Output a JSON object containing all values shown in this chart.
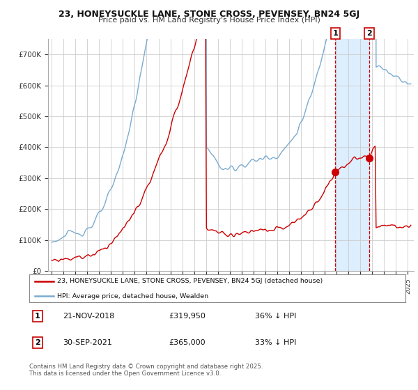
{
  "title1": "23, HONEYSUCKLE LANE, STONE CROSS, PEVENSEY, BN24 5GJ",
  "title2": "Price paid vs. HM Land Registry's House Price Index (HPI)",
  "legend_line1": "23, HONEYSUCKLE LANE, STONE CROSS, PEVENSEY, BN24 5GJ (detached house)",
  "legend_line2": "HPI: Average price, detached house, Wealden",
  "transaction1_date": "21-NOV-2018",
  "transaction1_price": "£319,950",
  "transaction1_note": "36% ↓ HPI",
  "transaction2_date": "30-SEP-2021",
  "transaction2_price": "£365,000",
  "transaction2_note": "33% ↓ HPI",
  "footer": "Contains HM Land Registry data © Crown copyright and database right 2025.\nThis data is licensed under the Open Government Licence v3.0.",
  "red_color": "#cc0000",
  "blue_color": "#7aabcf",
  "vline_color": "#cc0000",
  "shade_color": "#ddeeff",
  "grid_color": "#cccccc",
  "ytick_labels": [
    "£0",
    "£100K",
    "£200K",
    "£300K",
    "£400K",
    "£500K",
    "£600K",
    "£700K"
  ],
  "yticks": [
    0,
    100000,
    200000,
    300000,
    400000,
    500000,
    600000,
    700000
  ],
  "t1_year": 2018.88,
  "t2_year": 2021.75,
  "price1": 319950,
  "price2": 365000
}
